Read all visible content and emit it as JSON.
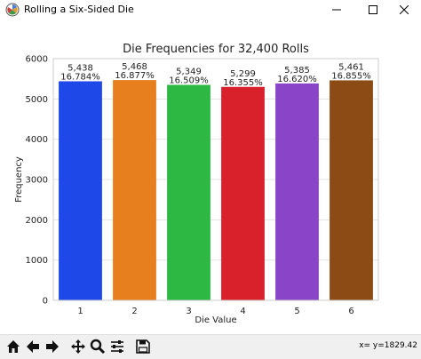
{
  "window": {
    "title": "Rolling a Six-Sided Die",
    "icon": "matplotlib-icon",
    "controls": [
      "minimize-icon",
      "maximize-icon",
      "close-icon"
    ]
  },
  "toolbar": {
    "tools": [
      "home-icon",
      "back-arrow-icon",
      "forward-arrow-icon",
      "pan-icon",
      "zoom-icon",
      "configure-subplots-icon",
      "save-icon"
    ],
    "coordinates": "x= y=1829.42"
  },
  "chart_data": {
    "type": "bar",
    "title": "Die Frequencies for 32,400 Rolls",
    "xlabel": "Die Value",
    "ylabel": "Frequency",
    "categories": [
      "1",
      "2",
      "3",
      "4",
      "5",
      "6"
    ],
    "values": [
      5438,
      5468,
      5349,
      5299,
      5385,
      5461
    ],
    "value_labels": [
      "5,438",
      "5,468",
      "5,349",
      "5,299",
      "5,385",
      "5,461"
    ],
    "percent_labels": [
      "16.784%",
      "16.877%",
      "16.509%",
      "16.355%",
      "16.620%",
      "16.855%"
    ],
    "colors": [
      "#1f48e8",
      "#e87f1f",
      "#2db843",
      "#d8212a",
      "#8a44c8",
      "#8c4a14"
    ],
    "ylim": [
      0,
      6000
    ],
    "yticks": [
      "0",
      "1000",
      "2000",
      "3000",
      "4000",
      "5000",
      "6000"
    ],
    "grid": true,
    "legend": false
  }
}
